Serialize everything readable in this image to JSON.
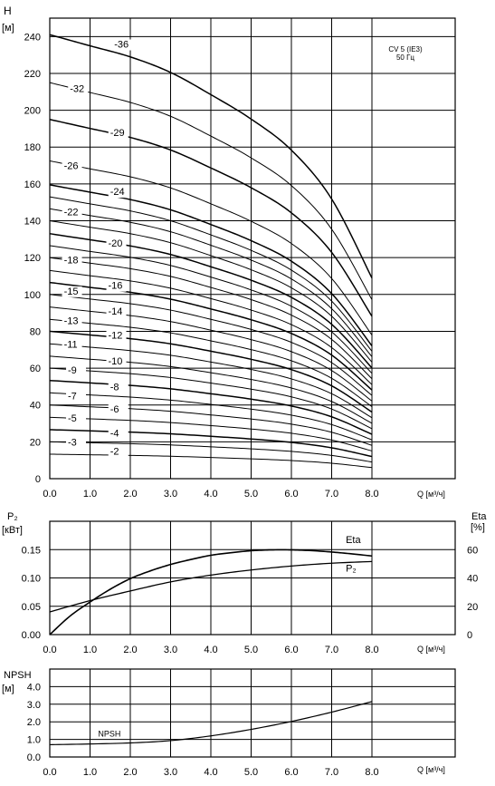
{
  "chart_data": [
    {
      "type": "line",
      "panel": "head",
      "ylabel_top": "H",
      "ylabel_unit": "[м]",
      "xlabel": "Q [м³/ч]",
      "annotation": [
        "CV 5 (IE3)",
        "50 Гц"
      ],
      "xlim": [
        0,
        8
      ],
      "ylim": [
        0,
        250
      ],
      "xticks": [
        "0.0",
        "1.0",
        "2.0",
        "3.0",
        "4.0",
        "5.0",
        "6.0",
        "7.0",
        "8.0"
      ],
      "yticks": [
        "0",
        "20",
        "40",
        "60",
        "80",
        "100",
        "120",
        "140",
        "160",
        "180",
        "200",
        "220",
        "240"
      ],
      "grid": true,
      "x": [
        0,
        1,
        2,
        3,
        4,
        5,
        6,
        7,
        8
      ],
      "shape": [
        1.0,
        0.975,
        0.95,
        0.915,
        0.865,
        0.81,
        0.74,
        0.63,
        0.452
      ],
      "series": [
        {
          "name": "-2",
          "h0": 13.3
        },
        {
          "name": "-3",
          "h0": 20
        },
        {
          "name": "-4",
          "h0": 26.6
        },
        {
          "name": "-5",
          "h0": 33.3
        },
        {
          "name": "-6",
          "h0": 40
        },
        {
          "name": "-7",
          "h0": 46.6
        },
        {
          "name": "-8",
          "h0": 53.3
        },
        {
          "name": "-9",
          "h0": 60
        },
        {
          "name": "-10",
          "h0": 66.5
        },
        {
          "name": "-11",
          "h0": 73.2
        },
        {
          "name": "-12",
          "h0": 80
        },
        {
          "name": "-13",
          "h0": 86.5
        },
        {
          "name": "-14",
          "h0": 93.2
        },
        {
          "name": "-15",
          "h0": 100
        },
        {
          "name": "-16",
          "h0": 106.5
        },
        {
          "name": "-17",
          "h0": 113
        },
        {
          "name": "-18",
          "h0": 120
        },
        {
          "name": "-19",
          "h0": 126.5
        },
        {
          "name": "-20",
          "h0": 133
        },
        {
          "name": "-21",
          "h0": 140
        },
        {
          "name": "-22",
          "h0": 146.5
        },
        {
          "name": "-23",
          "h0": 153
        },
        {
          "name": "-24",
          "h0": 159.5
        },
        {
          "name": "-26",
          "h0": 172.5
        },
        {
          "name": "-29",
          "h0": 195
        },
        {
          "name": "-32",
          "h0": 215
        },
        {
          "name": "-36",
          "h0": 241
        }
      ],
      "labels": [
        {
          "series": "-36",
          "x": 1.6,
          "y": 234
        },
        {
          "series": "-32",
          "x": 0.5,
          "y": 210
        },
        {
          "series": "-29",
          "x": 1.5,
          "y": 186
        },
        {
          "series": "-26",
          "x": 0.35,
          "y": 168
        },
        {
          "series": "-24",
          "x": 1.5,
          "y": 154
        },
        {
          "series": "-22",
          "x": 0.35,
          "y": 143
        },
        {
          "series": "-20",
          "x": 1.45,
          "y": 126
        },
        {
          "series": "-18",
          "x": 0.35,
          "y": 117
        },
        {
          "series": "-16",
          "x": 1.45,
          "y": 103
        },
        {
          "series": "-15",
          "x": 0.35,
          "y": 100
        },
        {
          "series": "-14",
          "x": 1.45,
          "y": 89
        },
        {
          "series": "-13",
          "x": 0.35,
          "y": 84
        },
        {
          "series": "-12",
          "x": 1.45,
          "y": 76
        },
        {
          "series": "-11",
          "x": 0.35,
          "y": 71
        },
        {
          "series": "-10",
          "x": 1.45,
          "y": 62
        },
        {
          "series": "-9",
          "x": 0.45,
          "y": 57
        },
        {
          "series": "-8",
          "x": 1.5,
          "y": 48
        },
        {
          "series": "-7",
          "x": 0.45,
          "y": 43
        },
        {
          "series": "-6",
          "x": 1.5,
          "y": 36
        },
        {
          "series": "-5",
          "x": 0.45,
          "y": 31
        },
        {
          "series": "-4",
          "x": 1.5,
          "y": 23
        },
        {
          "series": "-3",
          "x": 0.45,
          "y": 18
        },
        {
          "series": "-2",
          "x": 1.5,
          "y": 13
        }
      ],
      "bold": [
        "-36",
        "-29",
        "-24",
        "-20",
        "-16",
        "-12",
        "-8",
        "-4"
      ]
    },
    {
      "type": "line",
      "panel": "power",
      "ylabel_top": "P₂",
      "ylabel_unit": "[кВт]",
      "ylabel2_top": "Eta",
      "ylabel2_unit": "[%]",
      "xlabel": "Q [м³/ч]",
      "xlim": [
        0,
        8
      ],
      "ylim": [
        0,
        0.2
      ],
      "ylim2": [
        0,
        80
      ],
      "xticks": [
        "0.0",
        "1.0",
        "2.0",
        "3.0",
        "4.0",
        "5.0",
        "6.0",
        "7.0",
        "8.0"
      ],
      "yticks": [
        "0.00",
        "0.05",
        "0.10",
        "0.15"
      ],
      "yticks2": [
        "0",
        "20",
        "40",
        "60"
      ],
      "grid": true,
      "series": [
        {
          "name": "Eta",
          "axis": "right",
          "x": [
            0,
            0.5,
            1,
            1.5,
            2,
            2.5,
            3,
            3.5,
            4,
            4.5,
            5,
            5.5,
            6,
            6.5,
            7,
            7.5,
            8
          ],
          "values": [
            0,
            13,
            23,
            32,
            39.5,
            45,
            49.5,
            53,
            56,
            57.8,
            59.2,
            59.8,
            59.8,
            59.3,
            58.3,
            57,
            55.5
          ]
        },
        {
          "name": "P₂",
          "axis": "left",
          "x": [
            0,
            1,
            2,
            3,
            4,
            5,
            6,
            7,
            8
          ],
          "values": [
            0.04,
            0.06,
            0.077,
            0.093,
            0.105,
            0.114,
            0.121,
            0.126,
            0.129
          ]
        }
      ],
      "labels": [
        {
          "series": "Eta",
          "x": 7.35,
          "y": 0.162
        },
        {
          "series": "P₂",
          "x": 7.35,
          "y": 0.111
        }
      ]
    },
    {
      "type": "line",
      "panel": "npsh",
      "ylabel_top": "NPSH",
      "ylabel_unit": "[м]",
      "xlabel": "Q [м³/ч]",
      "xlim": [
        0,
        8
      ],
      "ylim": [
        0,
        5
      ],
      "xticks": [
        "0.0",
        "1.0",
        "2.0",
        "3.0",
        "4.0",
        "5.0",
        "6.0",
        "7.0",
        "8.0"
      ],
      "yticks": [
        "0.0",
        "1.0",
        "2.0",
        "3.0",
        "4.0"
      ],
      "grid": true,
      "series": [
        {
          "name": "NPSH",
          "x": [
            0,
            1,
            2,
            3,
            4,
            5,
            6,
            7,
            8
          ],
          "values": [
            0.7,
            0.74,
            0.8,
            0.93,
            1.2,
            1.57,
            2.02,
            2.55,
            3.15
          ]
        }
      ],
      "labels": [
        {
          "series": "NPSH",
          "x": 1.2,
          "y": 1.15
        }
      ]
    }
  ]
}
